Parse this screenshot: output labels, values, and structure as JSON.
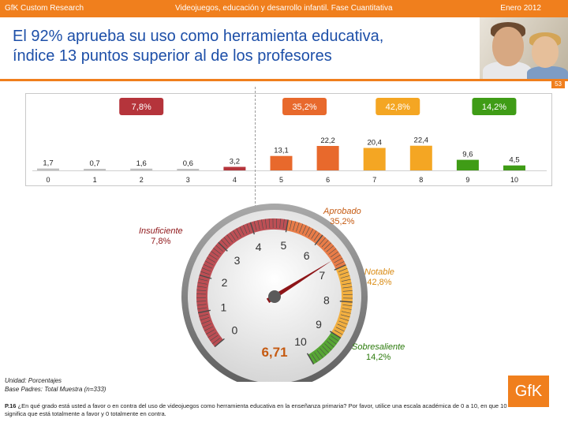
{
  "header": {
    "left": "GfK Custom Research",
    "center": "Videojuegos, educación y desarrollo infantil. Fase Cuantitativa",
    "right": "Enero 2012"
  },
  "title": {
    "line1": "El 92% aprueba su uso como herramienta educativa,",
    "line2": "índice 13 puntos superior al de los profesores"
  },
  "page_number": "53",
  "colors": {
    "accent": "#f07f1d",
    "title": "#1d4fa8",
    "insuficiente": "#b5343b",
    "aprobado": "#e8692c",
    "notable": "#f4a623",
    "sobresaliente": "#3f9c16",
    "gray_bar": "#bfbfbf"
  },
  "chart_data": {
    "type": "bar",
    "categories": [
      "0",
      "1",
      "2",
      "3",
      "4",
      "5",
      "6",
      "7",
      "8",
      "9",
      "10"
    ],
    "values": [
      1.7,
      0.7,
      1.6,
      0.6,
      3.2,
      13.1,
      22.2,
      20.4,
      22.4,
      9.6,
      4.5
    ],
    "value_labels": [
      "1,7",
      "0,7",
      "1,6",
      "0,6",
      "3,2",
      "13,1",
      "22,2",
      "20,4",
      "22,4",
      "9,6",
      "4,5"
    ],
    "ylim": [
      0,
      25
    ],
    "groups": [
      {
        "name": "Insuficiente",
        "pct": "7,8%",
        "range": [
          0,
          4
        ],
        "color": "#b5343b"
      },
      {
        "name": "Aprobado",
        "pct": "35,2%",
        "range": [
          5,
          6
        ],
        "color": "#e8692c"
      },
      {
        "name": "Notable",
        "pct": "42,8%",
        "range": [
          7,
          8
        ],
        "color": "#f4a623"
      },
      {
        "name": "Sobresaliente",
        "pct": "14,2%",
        "range": [
          9,
          10
        ],
        "color": "#3f9c16"
      }
    ]
  },
  "gauge": {
    "min": 0,
    "max": 10,
    "value": 6.71,
    "value_label": "6,71",
    "tick_labels": [
      "0",
      "1",
      "2",
      "3",
      "4",
      "5",
      "6",
      "7",
      "8",
      "9",
      "10"
    ],
    "labels": {
      "insuficiente": {
        "name": "Insuficiente",
        "pct": "7,8%"
      },
      "aprobado": {
        "name": "Aprobado",
        "pct": "35,2%"
      },
      "notable": {
        "name": "Notable",
        "pct": "42,8%"
      },
      "sobresaliente": {
        "name": "Sobresaliente",
        "pct": "14,2%"
      }
    }
  },
  "footnote": {
    "unit": "Unidad: Porcentajes",
    "base": "Base Padres: Total Muestra (n=333)",
    "question_code": "P.16",
    "question_text": " ¿En qué grado está usted a favor o en contra del uso de videojuegos como herramienta educativa en la enseñanza primaria? Por favor, utilice una escala académica de 0 a 10, en que 10 significa que está totalmente a favor y 0 totalmente en contra."
  },
  "logo": {
    "text": "GfK"
  }
}
